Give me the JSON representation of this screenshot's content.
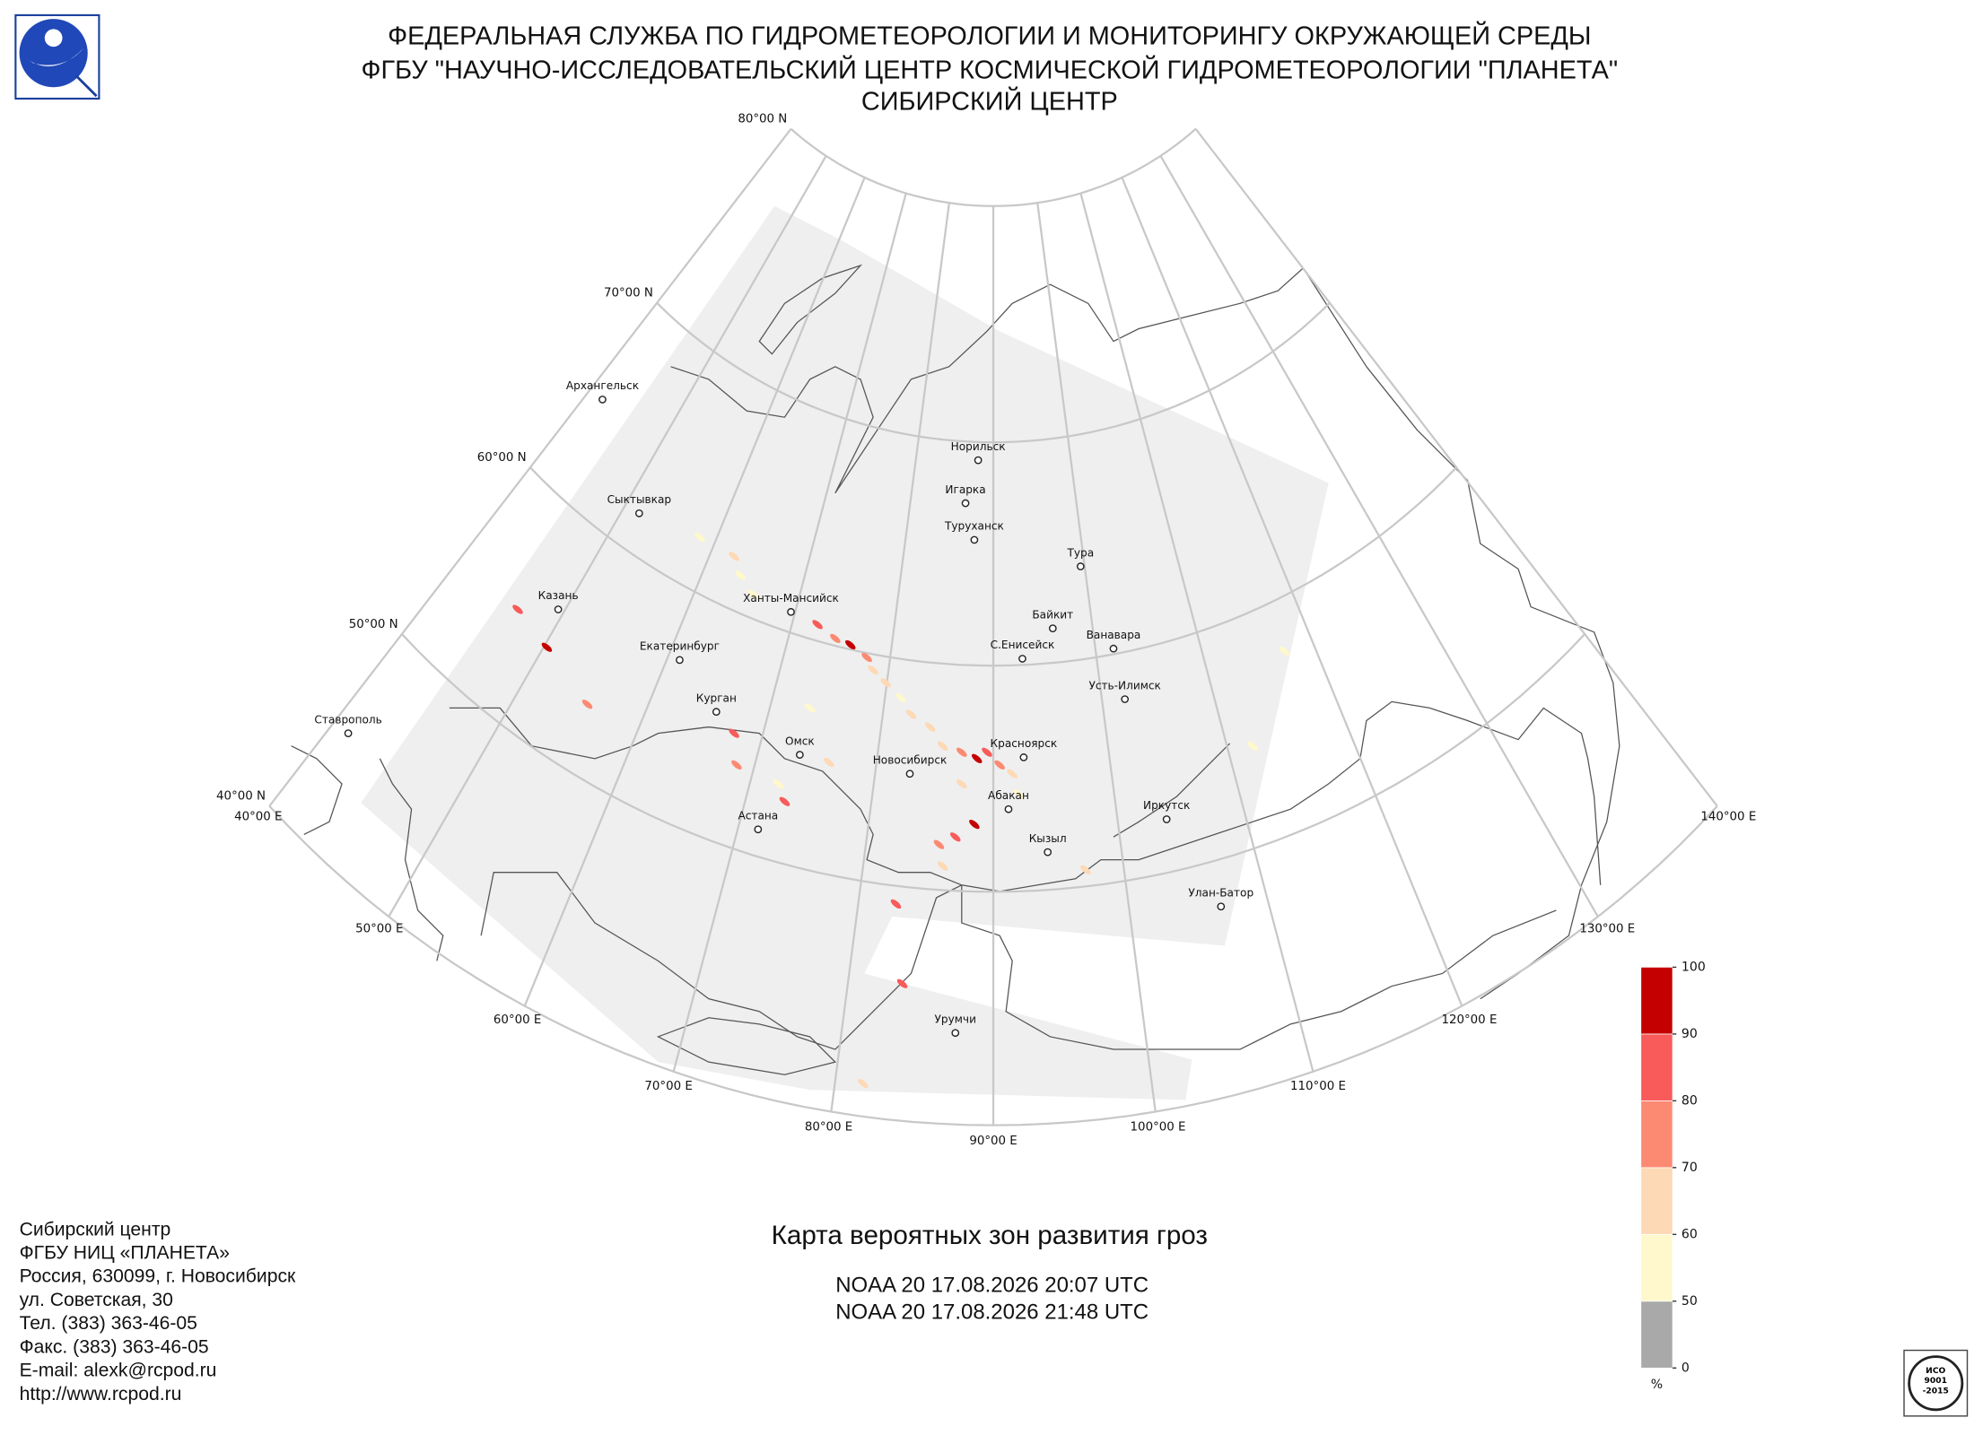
{
  "header": {
    "lines": [
      "ФЕДЕРАЛЬНАЯ СЛУЖБА ПО ГИДРОМЕТЕОРОЛОГИИ И МОНИТОРИНГУ ОКРУЖАЮЩЕЙ СРЕДЫ",
      "ФГБУ \"НАУЧНО-ИССЛЕДОВАТЕЛЬСКИЙ ЦЕНТР КОСМИЧЕСКОЙ ГИДРОМЕТЕОРОЛОГИИ \"ПЛАНЕТА\"",
      "СИБИРСКИЙ ЦЕНТР"
    ]
  },
  "map": {
    "lat_labels": [
      "80°00 N",
      "70°00 N",
      "60°00 N",
      "50°00 N",
      "40°00 N"
    ],
    "lon_labels": [
      "40°00 E",
      "50°00 E",
      "60°00 E",
      "70°00 E",
      "80°00 E",
      "90°00 E",
      "100°00 E",
      "110°00 E",
      "120°00 E",
      "130°00 E",
      "140°00 E"
    ],
    "cities": [
      "Архангельск",
      "Сыктывкар",
      "Казань",
      "Екатеринбург",
      "Ханты-Мансийск",
      "Курган",
      "Омск",
      "Новосибирск",
      "Астана",
      "Ставрополь",
      "Норильск",
      "Игарка",
      "Туруханск",
      "Тура",
      "Байкит",
      "Ванавара",
      "С.Енисейск",
      "Усть-Илимск",
      "Красноярск",
      "Абакан",
      "Кызыл",
      "Иркутск",
      "Улан-Батор",
      "Урумчи"
    ]
  },
  "colorbar": {
    "ticks": [
      0,
      50,
      60,
      70,
      80,
      90,
      100
    ],
    "colors": [
      "#a9a9a9",
      "#fff8cc",
      "#fdd9b5",
      "#fc8a72",
      "#f95a5a",
      "#c40000"
    ],
    "unit": "%"
  },
  "title": "Карта вероятных зон развития гроз",
  "passes": [
    "NOAA 20 17.08.2026  20:07 UTC",
    "NOAA 20 17.08.2026  21:48 UTC"
  ],
  "contact": [
    "Сибирский центр",
    "ФГБУ НИЦ «ПЛАНЕТА»",
    "Россия, 630099, г. Новосибирск",
    "ул. Советская, 30",
    "Тел. (383) 363-46-05",
    "Факс. (383) 363-46-05",
    "E-mail: alexk@rcpod.ru",
    "http://www.rcpod.ru"
  ],
  "badge": [
    "ИСО",
    "9001",
    "-2015"
  ]
}
